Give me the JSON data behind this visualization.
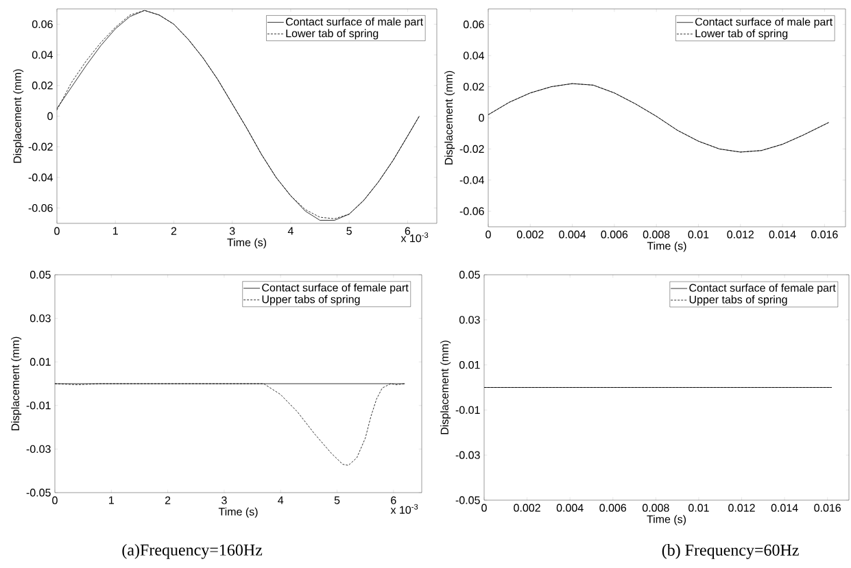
{
  "chart_data": [
    {
      "type": "line",
      "xlabel": "Time (s)",
      "ylabel": "Displacement (mm)",
      "xlim": [
        0,
        6.5
      ],
      "xticks": [
        0,
        1,
        2,
        3,
        4,
        5,
        6
      ],
      "ylim": [
        -0.07,
        0.07
      ],
      "yticks": [
        -0.06,
        -0.04,
        -0.02,
        0,
        0.02,
        0.04,
        0.06
      ],
      "legend": "top right",
      "annotations": [
        "x 10$^{-3}$"
      ],
      "x": [
        0,
        0.25,
        0.5,
        0.75,
        1.0,
        1.25,
        1.5,
        1.75,
        2.0,
        2.25,
        2.5,
        2.75,
        3.0,
        3.25,
        3.5,
        3.75,
        4.0,
        4.25,
        4.5,
        4.75,
        5.0,
        5.25,
        5.5,
        5.75,
        6.0,
        6.2
      ],
      "series": [
        {
          "name": "Contact surface of male part",
          "color": "#000000",
          "line_style": "solid",
          "values": [
            0.005,
            0.019,
            0.033,
            0.046,
            0.057,
            0.065,
            0.069,
            0.066,
            0.06,
            0.05,
            0.038,
            0.024,
            0.008,
            -0.008,
            -0.025,
            -0.04,
            -0.052,
            -0.062,
            -0.068,
            -0.068,
            -0.064,
            -0.055,
            -0.043,
            -0.029,
            -0.013,
            0.0
          ]
        },
        {
          "name": "Lower tab of spring",
          "color": "#000000",
          "line_style": "dashed",
          "values": [
            0.004,
            0.022,
            0.036,
            0.048,
            0.058,
            0.066,
            0.069,
            0.066,
            0.06,
            0.05,
            0.038,
            0.024,
            0.008,
            -0.008,
            -0.025,
            -0.04,
            -0.052,
            -0.061,
            -0.066,
            -0.067,
            -0.064,
            -0.055,
            -0.043,
            -0.029,
            -0.013,
            0.0
          ]
        }
      ]
    },
    {
      "type": "line",
      "xlabel": "Time (s)",
      "ylabel": "Displacement (mm)",
      "xlim": [
        0,
        0.017
      ],
      "xticks": [
        0,
        0.002,
        0.004,
        0.006,
        0.008,
        0.01,
        0.012,
        0.014,
        0.016
      ],
      "ylim": [
        -0.07,
        0.07
      ],
      "yticks": [
        -0.06,
        -0.04,
        -0.02,
        0,
        0.02,
        0.04,
        0.06
      ],
      "legend": "top right",
      "x": [
        0,
        0.001,
        0.002,
        0.003,
        0.004,
        0.005,
        0.006,
        0.007,
        0.008,
        0.009,
        0.01,
        0.011,
        0.012,
        0.013,
        0.014,
        0.015,
        0.0162
      ],
      "series": [
        {
          "name": "Contact surface of male part",
          "color": "#000000",
          "line_style": "solid",
          "values": [
            0.002,
            0.01,
            0.016,
            0.02,
            0.022,
            0.021,
            0.016,
            0.009,
            0.001,
            -0.008,
            -0.015,
            -0.02,
            -0.022,
            -0.021,
            -0.017,
            -0.011,
            -0.003
          ]
        },
        {
          "name": "Lower tab of spring",
          "color": "#000000",
          "line_style": "dashed",
          "values": [
            0.002,
            0.01,
            0.016,
            0.02,
            0.022,
            0.021,
            0.016,
            0.009,
            0.001,
            -0.008,
            -0.015,
            -0.02,
            -0.022,
            -0.021,
            -0.017,
            -0.011,
            -0.003
          ]
        }
      ]
    },
    {
      "type": "line",
      "xlabel": "Time (s)",
      "ylabel": "Displacement (mm)",
      "xlim": [
        0,
        6.5
      ],
      "xticks": [
        0,
        1,
        2,
        3,
        4,
        5,
        6
      ],
      "ylim": [
        -0.05,
        0.05
      ],
      "yticks": [
        -0.05,
        -0.03,
        -0.01,
        0.01,
        0.03,
        0.05
      ],
      "legend": "top right",
      "annotations": [
        "x 10$^{-3}$",
        "(a)Frequency=160Hz"
      ],
      "series": [
        {
          "name": "Contact surface of female part",
          "color": "#000000",
          "line_style": "solid",
          "x": [
            0,
            6.2
          ],
          "values": [
            0,
            0
          ]
        },
        {
          "name": "Upper tabs of spring",
          "color": "#000000",
          "line_style": "dashed",
          "x": [
            0,
            0.4,
            0.8,
            3.0,
            3.7,
            4.0,
            4.3,
            4.6,
            4.9,
            5.1,
            5.2,
            5.35,
            5.5,
            5.6,
            5.7,
            5.8,
            5.95,
            6.05,
            6.2
          ],
          "values": [
            0,
            -0.0005,
            0,
            0,
            0,
            -0.005,
            -0.013,
            -0.023,
            -0.032,
            -0.037,
            -0.0375,
            -0.034,
            -0.025,
            -0.015,
            -0.007,
            -0.002,
            0,
            -0.0005,
            0
          ]
        }
      ]
    },
    {
      "type": "line",
      "xlabel": "Time (s)",
      "ylabel": "Displacement (mm)",
      "xlim": [
        0,
        0.017
      ],
      "xticks": [
        0,
        0.002,
        0.004,
        0.006,
        0.008,
        0.01,
        0.012,
        0.014,
        0.016
      ],
      "ylim": [
        -0.05,
        0.05
      ],
      "yticks": [
        -0.05,
        -0.03,
        -0.01,
        0.01,
        0.03,
        0.05
      ],
      "legend": "top right",
      "annotations": [
        "(b) Frequency=60Hz"
      ],
      "series": [
        {
          "name": "Contact surface of female part",
          "color": "#000000",
          "line_style": "solid",
          "x": [
            0,
            0.0162
          ],
          "values": [
            0,
            0
          ]
        },
        {
          "name": "Upper tabs of spring",
          "color": "#000000",
          "line_style": "dashed",
          "x": [
            0,
            0.0162
          ],
          "values": [
            0,
            0
          ]
        }
      ]
    }
  ]
}
